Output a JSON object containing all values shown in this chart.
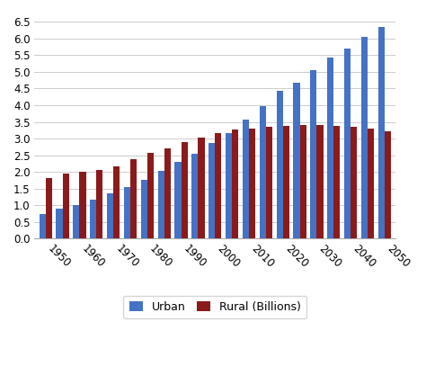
{
  "years": [
    1950,
    1955,
    1960,
    1965,
    1970,
    1975,
    1980,
    1985,
    1990,
    1995,
    2000,
    2005,
    2010,
    2015,
    2020,
    2025,
    2030,
    2035,
    2040,
    2045,
    2050
  ],
  "urban": [
    0.75,
    0.9,
    1.02,
    1.18,
    1.35,
    1.54,
    1.75,
    2.02,
    2.29,
    2.55,
    2.86,
    3.17,
    3.57,
    3.96,
    4.43,
    4.68,
    5.06,
    5.42,
    5.71,
    6.04,
    6.34
  ],
  "rural": [
    1.82,
    1.95,
    2.0,
    2.06,
    2.18,
    2.38,
    2.58,
    2.7,
    2.89,
    3.04,
    3.17,
    3.27,
    3.31,
    3.35,
    3.39,
    3.4,
    3.4,
    3.38,
    3.36,
    3.29,
    3.22
  ],
  "decade_labels": [
    "1950",
    "1960",
    "1970",
    "1980",
    "1990",
    "2000",
    "2010",
    "2020",
    "2030",
    "2040",
    "2050"
  ],
  "decade_positions": [
    0,
    2,
    4,
    6,
    8,
    10,
    12,
    14,
    16,
    18,
    20
  ],
  "urban_color": "#4472C4",
  "rural_color": "#8B1A1A",
  "bar_width": 0.38,
  "group_width": 1.0,
  "ylim": [
    0,
    6.75
  ],
  "yticks": [
    0,
    0.5,
    1.0,
    1.5,
    2.0,
    2.5,
    3.0,
    3.5,
    4.0,
    4.5,
    5.0,
    5.5,
    6.0,
    6.5
  ],
  "legend_labels": [
    "Urban",
    "Rural (Billions)"
  ],
  "background_color": "#ffffff",
  "grid_color": "#cccccc"
}
